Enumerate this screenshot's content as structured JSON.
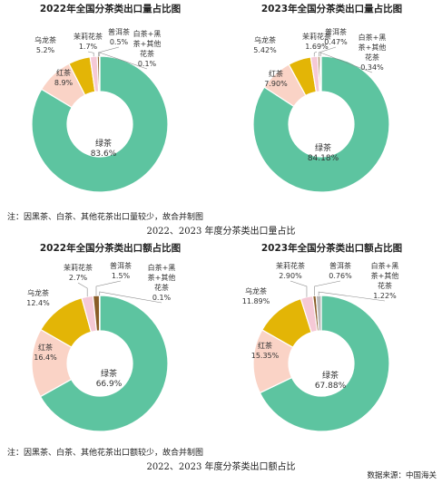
{
  "colors": {
    "绿茶": "#5dc4a0",
    "红茶": "#fad3c6",
    "乌龙茶": "#e3b506",
    "茉莉花茶": "#f5c9d6",
    "普洱茶": "#8a5d28",
    "白茶+黑茶+其他花茶": "#b8b8b8"
  },
  "chart_data": [
    {
      "type": "pie",
      "title": "2022年全国分茶类出口量占比图",
      "categories": [
        "绿茶",
        "红茶",
        "乌龙茶",
        "茉莉花茶",
        "普洱茶",
        "白茶+黑茶+其他花茶"
      ],
      "values": [
        83.6,
        8.9,
        5.2,
        1.7,
        0.5,
        0.1
      ],
      "value_labels": [
        "83.6%",
        "8.9%",
        "5.2%",
        "1.7%",
        "0.5%",
        "0.1%"
      ]
    },
    {
      "type": "pie",
      "title": "2023年全国分茶类出口量占比图",
      "categories": [
        "绿茶",
        "红茶",
        "乌龙茶",
        "茉莉花茶",
        "普洱茶",
        "白茶+黑茶+其他花茶"
      ],
      "values": [
        84.18,
        7.9,
        5.42,
        1.69,
        0.47,
        0.34
      ],
      "value_labels": [
        "84.18%",
        "7.90%",
        "5.42%",
        "1.69%",
        "0.47%",
        "0.34%"
      ]
    },
    {
      "type": "pie",
      "title": "2022年全国分茶类出口额占比图",
      "categories": [
        "绿茶",
        "红茶",
        "乌龙茶",
        "茉莉花茶",
        "普洱茶",
        "白茶+黑茶+其他花茶"
      ],
      "values": [
        66.9,
        16.4,
        12.4,
        2.7,
        1.5,
        0.1
      ],
      "value_labels": [
        "66.9%",
        "16.4%",
        "12.4%",
        "2.7%",
        "1.5%",
        "0.1%"
      ]
    },
    {
      "type": "pie",
      "title": "2023年全国分茶类出口额占比图",
      "categories": [
        "绿茶",
        "红茶",
        "乌龙茶",
        "茉莉花茶",
        "普洱茶",
        "白茶+黑茶+其他花茶"
      ],
      "values": [
        67.88,
        15.35,
        11.89,
        2.9,
        0.76,
        1.22
      ],
      "value_labels": [
        "67.88%",
        "15.35%",
        "11.89%",
        "2.90%",
        "0.76%",
        "1.22%"
      ]
    }
  ],
  "notes": {
    "volume_note": "注：因黑茶、白茶、其他花茶出口量较少，故合并制图",
    "volume_caption": "2022、2023 年度分茶类出口量占比",
    "value_note": "注：因黑茶、白茶、其他花茶出口额较少，故合并制图",
    "value_caption": "2022、2023 年度分茶类出口额占比",
    "source": "数据来源：中国海关"
  }
}
